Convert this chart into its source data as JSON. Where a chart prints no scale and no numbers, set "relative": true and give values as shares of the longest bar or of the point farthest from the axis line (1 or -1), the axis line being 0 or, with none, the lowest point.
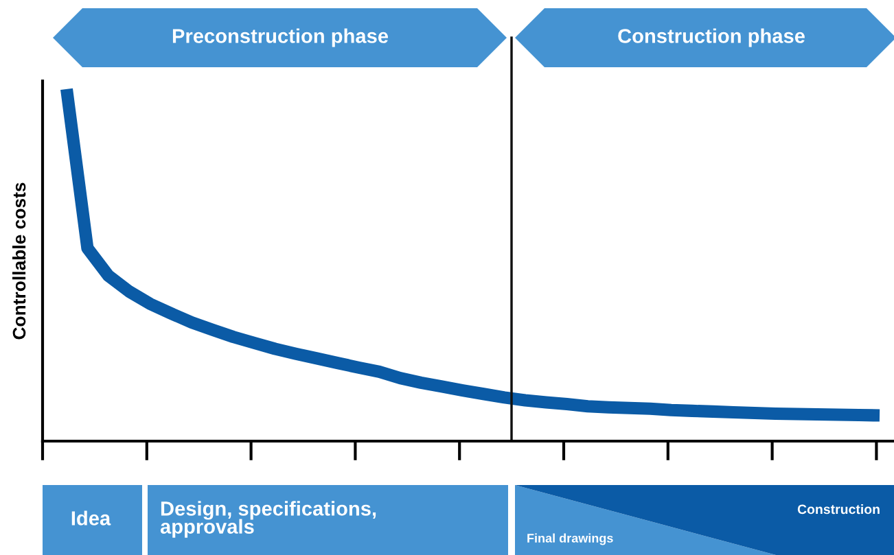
{
  "chart_data": {
    "type": "line",
    "relative": true,
    "ylabel": "Controllable costs",
    "grid": false,
    "legend": false,
    "marker": "none",
    "line_style": "solid",
    "categories": [
      null,
      null,
      null,
      null,
      null,
      null,
      null,
      null,
      null,
      null,
      null,
      null,
      null,
      null,
      null,
      null,
      null,
      null,
      null,
      null,
      null,
      null,
      null,
      null,
      null,
      null,
      null,
      null,
      null,
      null,
      null,
      null,
      null,
      null,
      null,
      null,
      null,
      null,
      null,
      null
    ],
    "series": [
      {
        "color": "#0b5ba6",
        "values": [
          1.0,
          0.548,
          0.47,
          0.425,
          0.39,
          0.363,
          0.337,
          0.316,
          0.296,
          0.279,
          0.262,
          0.248,
          0.235,
          0.222,
          0.209,
          0.197,
          0.179,
          0.166,
          0.155,
          0.144,
          0.134,
          0.124,
          0.116,
          0.11,
          0.105,
          0.099,
          0.096,
          0.094,
          0.092,
          0.088,
          0.086,
          0.084,
          0.082,
          0.08,
          0.078,
          0.077,
          0.076,
          0.075,
          0.074,
          0.073
        ]
      }
    ],
    "annotations": [
      "Preconstruction phase",
      "Construction phase",
      "Idea",
      "Design, specifications, approvals",
      "Final drawings",
      "Construction"
    ]
  }
}
